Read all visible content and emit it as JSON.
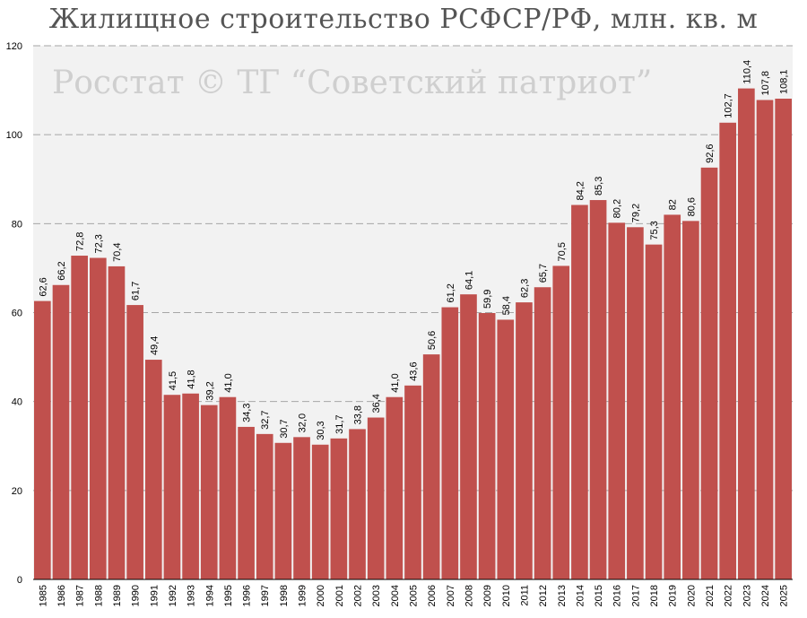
{
  "title": "Жилищное строительство РСФСР/РФ, млн. кв. м",
  "watermark": "Росстат © ТГ “Советский патриот”",
  "colors": {
    "bar": "#c0504d",
    "plot_bg": "#f2f2f2",
    "grid": "#a6a6a6"
  },
  "chart_data": {
    "type": "bar",
    "title": "Жилищное строительство РСФСР/РФ, млн. кв. м",
    "xlabel": "",
    "ylabel": "",
    "ylim": [
      0,
      120
    ],
    "yticks": [
      0,
      20,
      40,
      60,
      80,
      100,
      120
    ],
    "grid": true,
    "categories": [
      "1985",
      "1986",
      "1987",
      "1988",
      "1989",
      "1990",
      "1991",
      "1992",
      "1993",
      "1994",
      "1995",
      "1996",
      "1997",
      "1998",
      "1999",
      "2000",
      "2001",
      "2002",
      "2003",
      "2004",
      "2005",
      "2006",
      "2007",
      "2008",
      "2009",
      "2010",
      "2011",
      "2012",
      "2013",
      "2014",
      "2015",
      "2016",
      "2017",
      "2018",
      "2019",
      "2020",
      "2021",
      "2022",
      "2023",
      "2024",
      "2025"
    ],
    "values": [
      62.6,
      66.2,
      72.8,
      72.3,
      70.4,
      61.7,
      49.4,
      41.5,
      41.8,
      39.2,
      41.0,
      34.3,
      32.7,
      30.7,
      32.0,
      30.3,
      31.7,
      33.8,
      36.4,
      41.0,
      43.6,
      50.6,
      61.2,
      64.1,
      59.9,
      58.4,
      62.3,
      65.7,
      70.5,
      84.2,
      85.3,
      80.2,
      79.2,
      75.3,
      82,
      80.6,
      92.6,
      102.7,
      110.4,
      107.8,
      108.1
    ],
    "value_labels": [
      "62,6",
      "66,2",
      "72,8",
      "72,3",
      "70,4",
      "61,7",
      "49,4",
      "41,5",
      "41,8",
      "39,2",
      "41,0",
      "34,3",
      "32,7",
      "30,7",
      "32,0",
      "30,3",
      "31,7",
      "33,8",
      "36,4",
      "41,0",
      "43,6",
      "50,6",
      "61,2",
      "64,1",
      "59,9",
      "58,4",
      "62,3",
      "65,7",
      "70,5",
      "84,2",
      "85,3",
      "80,2",
      "79,2",
      "75,3",
      "82",
      "80,6",
      "92,6",
      "102,7",
      "110,4",
      "107,8",
      "108,1"
    ]
  }
}
